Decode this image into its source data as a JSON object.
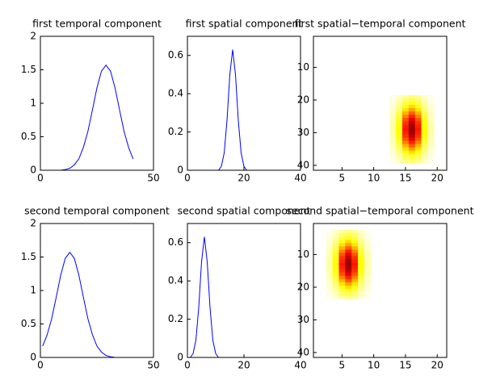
{
  "chart_data": [
    {
      "type": "line",
      "title": "first temporal component",
      "color": "#0000ff",
      "x": [
        1,
        3,
        5,
        7,
        9,
        11,
        13,
        15,
        17,
        19,
        21,
        23,
        25,
        27,
        29,
        31,
        33,
        35,
        37,
        39,
        41
      ],
      "values": [
        0,
        0,
        0,
        0,
        0,
        0.01,
        0.03,
        0.08,
        0.17,
        0.34,
        0.58,
        0.9,
        1.23,
        1.48,
        1.57,
        1.48,
        1.23,
        0.9,
        0.58,
        0.34,
        0.17
      ],
      "xlim": [
        0,
        50
      ],
      "xticks": [
        0,
        50
      ],
      "ylim": [
        0,
        2
      ],
      "yticks": [
        0,
        0.5,
        1,
        1.5,
        2
      ]
    },
    {
      "type": "line",
      "title": "first spatial component",
      "color": "#0000ff",
      "x": [
        1,
        2,
        3,
        4,
        5,
        6,
        7,
        8,
        9,
        10,
        11,
        12,
        13,
        14,
        15,
        16,
        17,
        18,
        19,
        20,
        21
      ],
      "values": [
        0,
        0,
        0,
        0,
        0,
        0,
        0,
        0,
        0,
        0,
        0,
        0.02,
        0.09,
        0.26,
        0.5,
        0.63,
        0.5,
        0.26,
        0.09,
        0.02,
        0
      ],
      "xlim": [
        0,
        40
      ],
      "xticks": [
        0,
        20,
        40
      ],
      "ylim": [
        0,
        0.7
      ],
      "yticks": [
        0,
        0.2,
        0.4,
        0.6
      ]
    },
    {
      "type": "heatmap",
      "title": "first spatial−temporal component",
      "colormap": "hot",
      "colormap_reversed": true,
      "clim": [
        0,
        1.25
      ],
      "x": [
        13,
        14,
        15,
        16,
        17,
        18,
        19
      ],
      "y": [
        19,
        20,
        21,
        22,
        23,
        24,
        25,
        26,
        27,
        28,
        29,
        30,
        31,
        32,
        33,
        34,
        35,
        36,
        37,
        38,
        39
      ],
      "z": [
        [
          0.03,
          0.09,
          0.17,
          0.21,
          0.17,
          0.09,
          0.03
        ],
        [
          0.04,
          0.12,
          0.23,
          0.29,
          0.23,
          0.12,
          0.04
        ],
        [
          0.05,
          0.15,
          0.3,
          0.37,
          0.3,
          0.15,
          0.05
        ],
        [
          0.07,
          0.19,
          0.38,
          0.47,
          0.38,
          0.19,
          0.07
        ],
        [
          0.08,
          0.23,
          0.46,
          0.57,
          0.46,
          0.23,
          0.08
        ],
        [
          0.1,
          0.28,
          0.54,
          0.68,
          0.54,
          0.28,
          0.1
        ],
        [
          0.11,
          0.32,
          0.62,
          0.78,
          0.62,
          0.32,
          0.11
        ],
        [
          0.12,
          0.36,
          0.7,
          0.87,
          0.7,
          0.36,
          0.12
        ],
        [
          0.13,
          0.39,
          0.75,
          0.94,
          0.75,
          0.39,
          0.13
        ],
        [
          0.14,
          0.4,
          0.78,
          0.98,
          0.78,
          0.4,
          0.14
        ],
        [
          0.14,
          0.41,
          0.8,
          1,
          0.8,
          0.41,
          0.14
        ],
        [
          0.14,
          0.4,
          0.78,
          0.98,
          0.78,
          0.4,
          0.14
        ],
        [
          0.13,
          0.39,
          0.75,
          0.94,
          0.75,
          0.39,
          0.13
        ],
        [
          0.12,
          0.36,
          0.7,
          0.87,
          0.7,
          0.36,
          0.12
        ],
        [
          0.11,
          0.32,
          0.62,
          0.78,
          0.62,
          0.32,
          0.11
        ],
        [
          0.1,
          0.28,
          0.54,
          0.68,
          0.54,
          0.28,
          0.1
        ],
        [
          0.08,
          0.23,
          0.46,
          0.57,
          0.46,
          0.23,
          0.08
        ],
        [
          0.07,
          0.19,
          0.38,
          0.47,
          0.38,
          0.19,
          0.07
        ],
        [
          0.05,
          0.15,
          0.3,
          0.37,
          0.3,
          0.15,
          0.05
        ],
        [
          0.04,
          0.12,
          0.23,
          0.29,
          0.23,
          0.12,
          0.04
        ],
        [
          0.03,
          0.09,
          0.17,
          0.21,
          0.17,
          0.09,
          0.03
        ]
      ],
      "xlim": [
        0.5,
        21.5
      ],
      "xticks": [
        5,
        10,
        15,
        20
      ],
      "ylim": [
        0.5,
        41.5
      ],
      "yticks": [
        10,
        20,
        30,
        40
      ],
      "y_reversed": true
    },
    {
      "type": "line",
      "title": "second temporal component",
      "color": "#0000ff",
      "x": [
        1,
        3,
        5,
        7,
        9,
        11,
        13,
        15,
        17,
        19,
        21,
        23,
        25,
        27,
        29,
        31,
        33,
        35,
        37,
        39,
        41
      ],
      "values": [
        0.17,
        0.34,
        0.58,
        0.9,
        1.23,
        1.48,
        1.57,
        1.48,
        1.23,
        0.9,
        0.58,
        0.34,
        0.17,
        0.08,
        0.03,
        0.01,
        0,
        0,
        0,
        0,
        0
      ],
      "xlim": [
        0,
        50
      ],
      "xticks": [
        0,
        50
      ],
      "ylim": [
        0,
        2
      ],
      "yticks": [
        0,
        0.5,
        1,
        1.5,
        2
      ]
    },
    {
      "type": "line",
      "title": "second spatial component",
      "color": "#0000ff",
      "x": [
        1,
        2,
        3,
        4,
        5,
        6,
        7,
        8,
        9,
        10,
        11,
        12,
        13,
        14,
        15,
        16,
        17,
        18,
        19,
        20,
        21
      ],
      "values": [
        0,
        0.02,
        0.09,
        0.26,
        0.5,
        0.63,
        0.5,
        0.26,
        0.09,
        0.02,
        0,
        0,
        0,
        0,
        0,
        0,
        0,
        0,
        0,
        0,
        0
      ],
      "xlim": [
        0,
        40
      ],
      "xticks": [
        0,
        20,
        40
      ],
      "ylim": [
        0,
        0.7
      ],
      "yticks": [
        0,
        0.2,
        0.4,
        0.6
      ]
    },
    {
      "type": "heatmap",
      "title": "second spatial−temporal component",
      "colormap": "hot",
      "colormap_reversed": true,
      "clim": [
        0,
        1.25
      ],
      "x": [
        3,
        4,
        5,
        6,
        7,
        8,
        9
      ],
      "y": [
        3,
        4,
        5,
        6,
        7,
        8,
        9,
        10,
        11,
        12,
        13,
        14,
        15,
        16,
        17,
        18,
        19,
        20,
        21,
        22,
        23
      ],
      "z": [
        [
          0.03,
          0.09,
          0.17,
          0.21,
          0.17,
          0.09,
          0.03
        ],
        [
          0.04,
          0.12,
          0.23,
          0.29,
          0.23,
          0.12,
          0.04
        ],
        [
          0.05,
          0.15,
          0.3,
          0.37,
          0.3,
          0.15,
          0.05
        ],
        [
          0.07,
          0.19,
          0.38,
          0.47,
          0.38,
          0.19,
          0.07
        ],
        [
          0.08,
          0.23,
          0.46,
          0.57,
          0.46,
          0.23,
          0.08
        ],
        [
          0.1,
          0.28,
          0.54,
          0.68,
          0.54,
          0.28,
          0.1
        ],
        [
          0.11,
          0.32,
          0.62,
          0.78,
          0.62,
          0.32,
          0.11
        ],
        [
          0.12,
          0.36,
          0.7,
          0.87,
          0.7,
          0.36,
          0.12
        ],
        [
          0.13,
          0.39,
          0.75,
          0.94,
          0.75,
          0.39,
          0.13
        ],
        [
          0.14,
          0.4,
          0.78,
          0.98,
          0.78,
          0.4,
          0.14
        ],
        [
          0.14,
          0.41,
          0.8,
          1,
          0.8,
          0.41,
          0.14
        ],
        [
          0.14,
          0.4,
          0.78,
          0.98,
          0.78,
          0.4,
          0.14
        ],
        [
          0.13,
          0.39,
          0.75,
          0.94,
          0.75,
          0.39,
          0.13
        ],
        [
          0.12,
          0.36,
          0.7,
          0.87,
          0.7,
          0.36,
          0.12
        ],
        [
          0.11,
          0.32,
          0.62,
          0.78,
          0.62,
          0.32,
          0.11
        ],
        [
          0.1,
          0.28,
          0.54,
          0.68,
          0.54,
          0.28,
          0.1
        ],
        [
          0.08,
          0.23,
          0.46,
          0.57,
          0.46,
          0.23,
          0.08
        ],
        [
          0.07,
          0.19,
          0.38,
          0.47,
          0.38,
          0.19,
          0.07
        ],
        [
          0.05,
          0.15,
          0.3,
          0.37,
          0.3,
          0.15,
          0.05
        ],
        [
          0.04,
          0.12,
          0.23,
          0.29,
          0.23,
          0.12,
          0.04
        ],
        [
          0.03,
          0.09,
          0.17,
          0.21,
          0.17,
          0.09,
          0.03
        ]
      ],
      "xlim": [
        0.5,
        21.5
      ],
      "xticks": [
        5,
        10,
        15,
        20
      ],
      "ylim": [
        0.5,
        41.5
      ],
      "yticks": [
        10,
        20,
        30,
        40
      ],
      "y_reversed": true
    }
  ]
}
